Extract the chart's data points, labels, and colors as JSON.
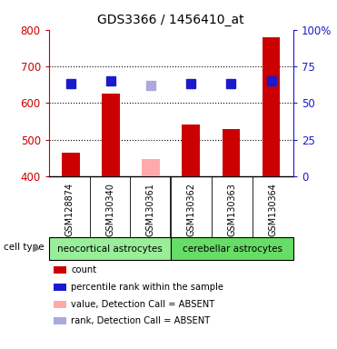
{
  "title": "GDS3366 / 1456410_at",
  "samples": [
    "GSM128874",
    "GSM130340",
    "GSM130361",
    "GSM130362",
    "GSM130363",
    "GSM130364"
  ],
  "bar_values": [
    465,
    625,
    448,
    540,
    530,
    780
  ],
  "bar_colors": [
    "#cc0000",
    "#cc0000",
    "#ffaaaa",
    "#cc0000",
    "#cc0000",
    "#cc0000"
  ],
  "percentile_values": [
    63,
    65,
    62,
    63,
    63,
    65
  ],
  "percentile_colors": [
    "#1a1acc",
    "#1a1acc",
    "#aaaadd",
    "#1a1acc",
    "#1a1acc",
    "#1a1acc"
  ],
  "absent_flags": [
    false,
    false,
    true,
    false,
    false,
    false
  ],
  "ylim_left": [
    400,
    800
  ],
  "ylim_right": [
    0,
    100
  ],
  "yticks_left": [
    400,
    500,
    600,
    700,
    800
  ],
  "yticks_right": [
    0,
    25,
    50,
    75,
    100
  ],
  "ytick_labels_right": [
    "0",
    "25",
    "50",
    "75",
    "100%"
  ],
  "group1_label": "neocortical astrocytes",
  "group2_label": "cerebellar astrocytes",
  "cell_type_label": "cell type",
  "legend_items": [
    {
      "color": "#cc0000",
      "label": "count"
    },
    {
      "color": "#1a1acc",
      "label": "percentile rank within the sample"
    },
    {
      "color": "#ffaaaa",
      "label": "value, Detection Call = ABSENT"
    },
    {
      "color": "#aaaadd",
      "label": "rank, Detection Call = ABSENT"
    }
  ],
  "bg_color": "#ffffff",
  "bar_width": 0.45,
  "marker_size": 7,
  "left_axis_color": "#cc0000",
  "right_axis_color": "#1a1acc",
  "group_colors": [
    "#99ee99",
    "#66dd66"
  ],
  "gray_color": "#cccccc"
}
